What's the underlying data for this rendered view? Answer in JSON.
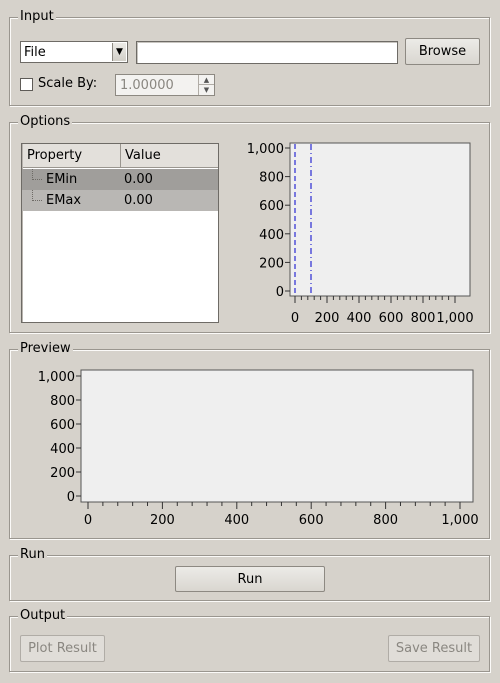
{
  "input": {
    "title": "Input",
    "source_select": "File",
    "file_path": "",
    "browse_label": "Browse",
    "scale_label": "Scale By:",
    "scale_checked": false,
    "scale_value": "1.00000"
  },
  "options": {
    "title": "Options",
    "table": {
      "headers": [
        "Property",
        "Value"
      ],
      "rows": [
        {
          "property": "EMin",
          "value": "0.00"
        },
        {
          "property": "EMax",
          "value": "0.00"
        }
      ]
    },
    "chart_data": {
      "type": "line",
      "xlim": [
        0,
        1000
      ],
      "ylim": [
        0,
        1000
      ],
      "xticks": [
        "0",
        "200",
        "400",
        "600",
        "800",
        "1,000"
      ],
      "yticks": [
        "0",
        "200",
        "400",
        "600",
        "800",
        "1,000"
      ],
      "markers": [
        {
          "x": 0
        },
        {
          "x": 100
        }
      ],
      "marker_color": "#0000cc",
      "series": []
    }
  },
  "preview": {
    "title": "Preview",
    "chart_data": {
      "type": "line",
      "xlim": [
        0,
        1000
      ],
      "ylim": [
        0,
        1000
      ],
      "xticks": [
        "0",
        "200",
        "400",
        "600",
        "800",
        "1,000"
      ],
      "yticks": [
        "0",
        "200",
        "400",
        "600",
        "800",
        "1,000"
      ],
      "series": []
    }
  },
  "run": {
    "title": "Run",
    "run_label": "Run"
  },
  "output": {
    "title": "Output",
    "plot_label": "Plot Result",
    "save_label": "Save Result"
  }
}
